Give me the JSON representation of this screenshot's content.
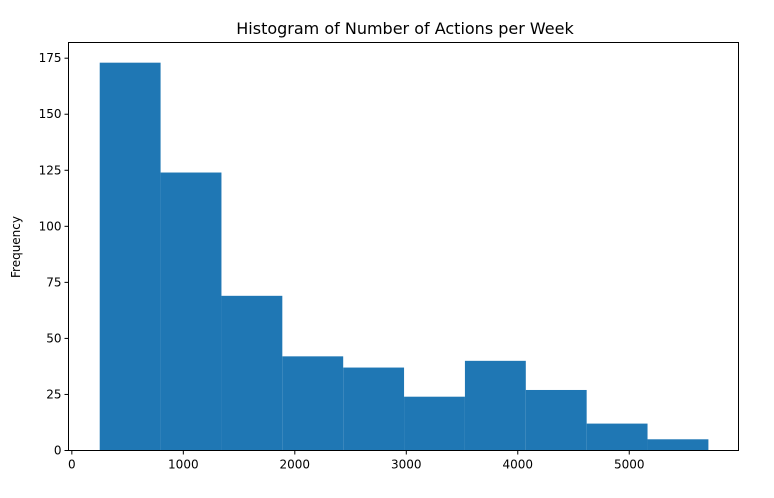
{
  "chart_data": {
    "type": "bar",
    "title": "Histogram of Number of Actions per Week",
    "xlabel": "",
    "ylabel": "Frequency",
    "bar_color": "#1f77b4",
    "grid": false,
    "xlim": [
      -30,
      5980
    ],
    "ylim": [
      0,
      182
    ],
    "bin_edges": [
      250,
      796,
      1342,
      1888,
      2434,
      2980,
      3526,
      4072,
      4618,
      5164,
      5710
    ],
    "values": [
      173,
      124,
      69,
      42,
      37,
      24,
      40,
      27,
      12,
      5
    ],
    "x_ticks": [
      {
        "value": 0,
        "label": "0"
      },
      {
        "value": 1000,
        "label": "1000"
      },
      {
        "value": 2000,
        "label": "2000"
      },
      {
        "value": 3000,
        "label": "3000"
      },
      {
        "value": 4000,
        "label": "4000"
      },
      {
        "value": 5000,
        "label": "5000"
      }
    ],
    "y_ticks": [
      {
        "value": 0,
        "label": "0"
      },
      {
        "value": 25,
        "label": "25"
      },
      {
        "value": 50,
        "label": "50"
      },
      {
        "value": 75,
        "label": "75"
      },
      {
        "value": 100,
        "label": "100"
      },
      {
        "value": 125,
        "label": "125"
      },
      {
        "value": 150,
        "label": "150"
      },
      {
        "value": 175,
        "label": "175"
      }
    ]
  }
}
